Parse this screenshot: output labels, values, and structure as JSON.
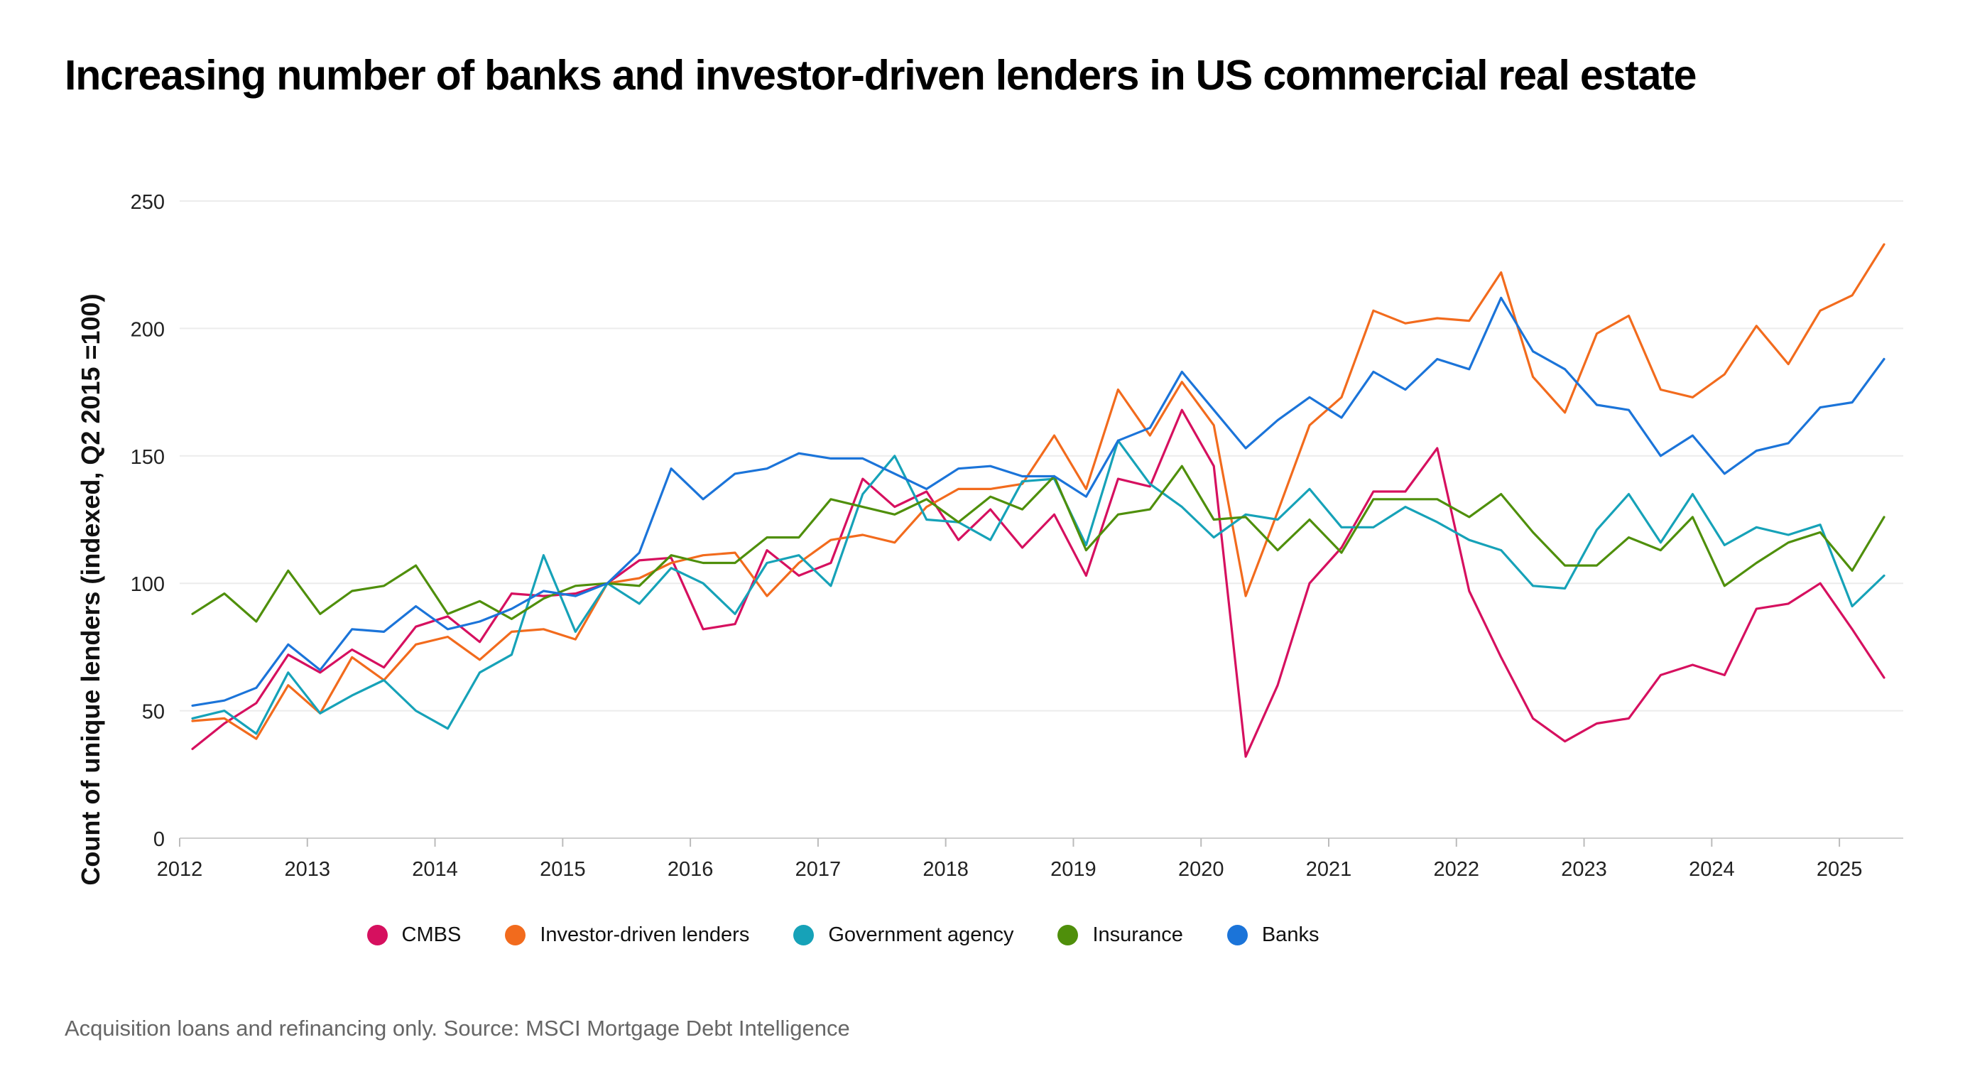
{
  "title": "Increasing number of banks and investor-driven lenders in US commercial real estate",
  "footnote": "Acquisition loans and refinancing only. Source: MSCI Mortgage Debt Intelligence",
  "chart_data": {
    "type": "line",
    "title": "Increasing number of banks and investor-driven lenders in US commercial real estate",
    "ylabel": "Count of unique lenders (indexed, Q2 2015 =100)",
    "xlabel": "",
    "xlim": [
      2012,
      2025.5
    ],
    "ylim": [
      0,
      250
    ],
    "yticks": [
      "0",
      "50",
      "100",
      "150",
      "200",
      "250"
    ],
    "xticks": [
      "2012",
      "2013",
      "2014",
      "2015",
      "2016",
      "2017",
      "2018",
      "2019",
      "2020",
      "2021",
      "2022",
      "2023",
      "2024",
      "2025"
    ],
    "grid": "horizontal",
    "legend_position": "bottom",
    "x": [
      2012.1,
      2012.35,
      2012.6,
      2012.85,
      2013.1,
      2013.35,
      2013.6,
      2013.85,
      2014.1,
      2014.35,
      2014.6,
      2014.85,
      2015.1,
      2015.35,
      2015.6,
      2015.85,
      2016.1,
      2016.35,
      2016.6,
      2016.85,
      2017.1,
      2017.35,
      2017.6,
      2017.85,
      2018.1,
      2018.35,
      2018.6,
      2018.85,
      2019.1,
      2019.35,
      2019.6,
      2019.85,
      2020.1,
      2020.35,
      2020.6,
      2020.85,
      2021.1,
      2021.35,
      2021.6,
      2021.85,
      2022.1,
      2022.35,
      2022.6,
      2022.85,
      2023.1,
      2023.35,
      2023.6,
      2023.85,
      2024.1,
      2024.35,
      2024.6,
      2024.85,
      2025.1,
      2025.35
    ],
    "series": [
      {
        "name": "CMBS",
        "color": "#d6105f",
        "values": [
          35,
          45,
          53,
          72,
          65,
          74,
          67,
          83,
          87,
          77,
          96,
          95,
          96,
          100,
          109,
          110,
          82,
          84,
          113,
          103,
          108,
          141,
          130,
          136,
          117,
          129,
          114,
          127,
          103,
          141,
          138,
          168,
          146,
          32,
          60,
          100,
          114,
          136,
          136,
          153,
          97,
          71,
          47,
          38,
          45,
          47,
          64,
          68,
          64,
          90,
          92,
          100,
          82,
          63
        ]
      },
      {
        "name": "Investor-driven lenders",
        "color": "#f26b1d",
        "values": [
          46,
          47,
          39,
          60,
          49,
          71,
          62,
          76,
          79,
          70,
          81,
          82,
          78,
          100,
          102,
          108,
          111,
          112,
          95,
          108,
          117,
          119,
          116,
          130,
          137,
          137,
          139,
          158,
          137,
          176,
          158,
          179,
          162,
          95,
          128,
          162,
          173,
          207,
          202,
          204,
          203,
          222,
          181,
          167,
          198,
          205,
          176,
          173,
          182,
          201,
          186,
          207,
          213,
          233
        ]
      },
      {
        "name": "Government agency",
        "color": "#16a2b8",
        "values": [
          47,
          50,
          41,
          65,
          49,
          56,
          62,
          50,
          43,
          65,
          72,
          111,
          81,
          100,
          92,
          106,
          100,
          88,
          108,
          111,
          99,
          135,
          150,
          125,
          124,
          117,
          140,
          141,
          115,
          156,
          139,
          130,
          118,
          127,
          125,
          137,
          122,
          122,
          130,
          124,
          117,
          113,
          99,
          98,
          121,
          135,
          116,
          135,
          115,
          122,
          119,
          123,
          91,
          103
        ]
      },
      {
        "name": "Insurance",
        "color": "#4f8f0b",
        "values": [
          88,
          96,
          85,
          105,
          88,
          97,
          99,
          107,
          88,
          93,
          86,
          94,
          99,
          100,
          99,
          111,
          108,
          108,
          118,
          118,
          133,
          130,
          127,
          133,
          124,
          134,
          129,
          142,
          113,
          127,
          129,
          146,
          125,
          126,
          113,
          125,
          112,
          133,
          133,
          133,
          126,
          135,
          120,
          107,
          107,
          118,
          113,
          126,
          99,
          108,
          116,
          120,
          105,
          126
        ]
      },
      {
        "name": "Banks",
        "color": "#1b74d9",
        "values": [
          52,
          54,
          59,
          76,
          66,
          82,
          81,
          91,
          82,
          85,
          90,
          97,
          95,
          100,
          112,
          145,
          133,
          143,
          145,
          151,
          149,
          149,
          143,
          137,
          145,
          146,
          142,
          142,
          134,
          156,
          161,
          183,
          168,
          153,
          164,
          173,
          165,
          183,
          176,
          188,
          184,
          212,
          191,
          184,
          170,
          168,
          150,
          158,
          143,
          152,
          155,
          169,
          171,
          188
        ]
      }
    ]
  }
}
